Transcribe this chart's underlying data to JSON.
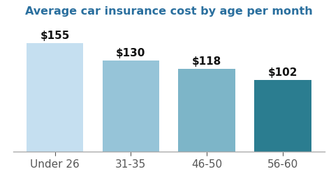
{
  "title": "Average car insurance cost by age per month",
  "categories": [
    "Under 26",
    "31-35",
    "46-50",
    "56-60"
  ],
  "values": [
    155,
    130,
    118,
    102
  ],
  "bar_colors": [
    "#c5dff0",
    "#96c4d8",
    "#7db5c8",
    "#2b7d90"
  ],
  "value_labels": [
    "$155",
    "$130",
    "$118",
    "$102"
  ],
  "ylim": [
    0,
    185
  ],
  "title_color": "#2a6f9e",
  "title_fontsize": 11.5,
  "bar_label_fontsize": 11,
  "xlabel_fontsize": 11,
  "background_color": "#ffffff",
  "bar_width": 0.75
}
